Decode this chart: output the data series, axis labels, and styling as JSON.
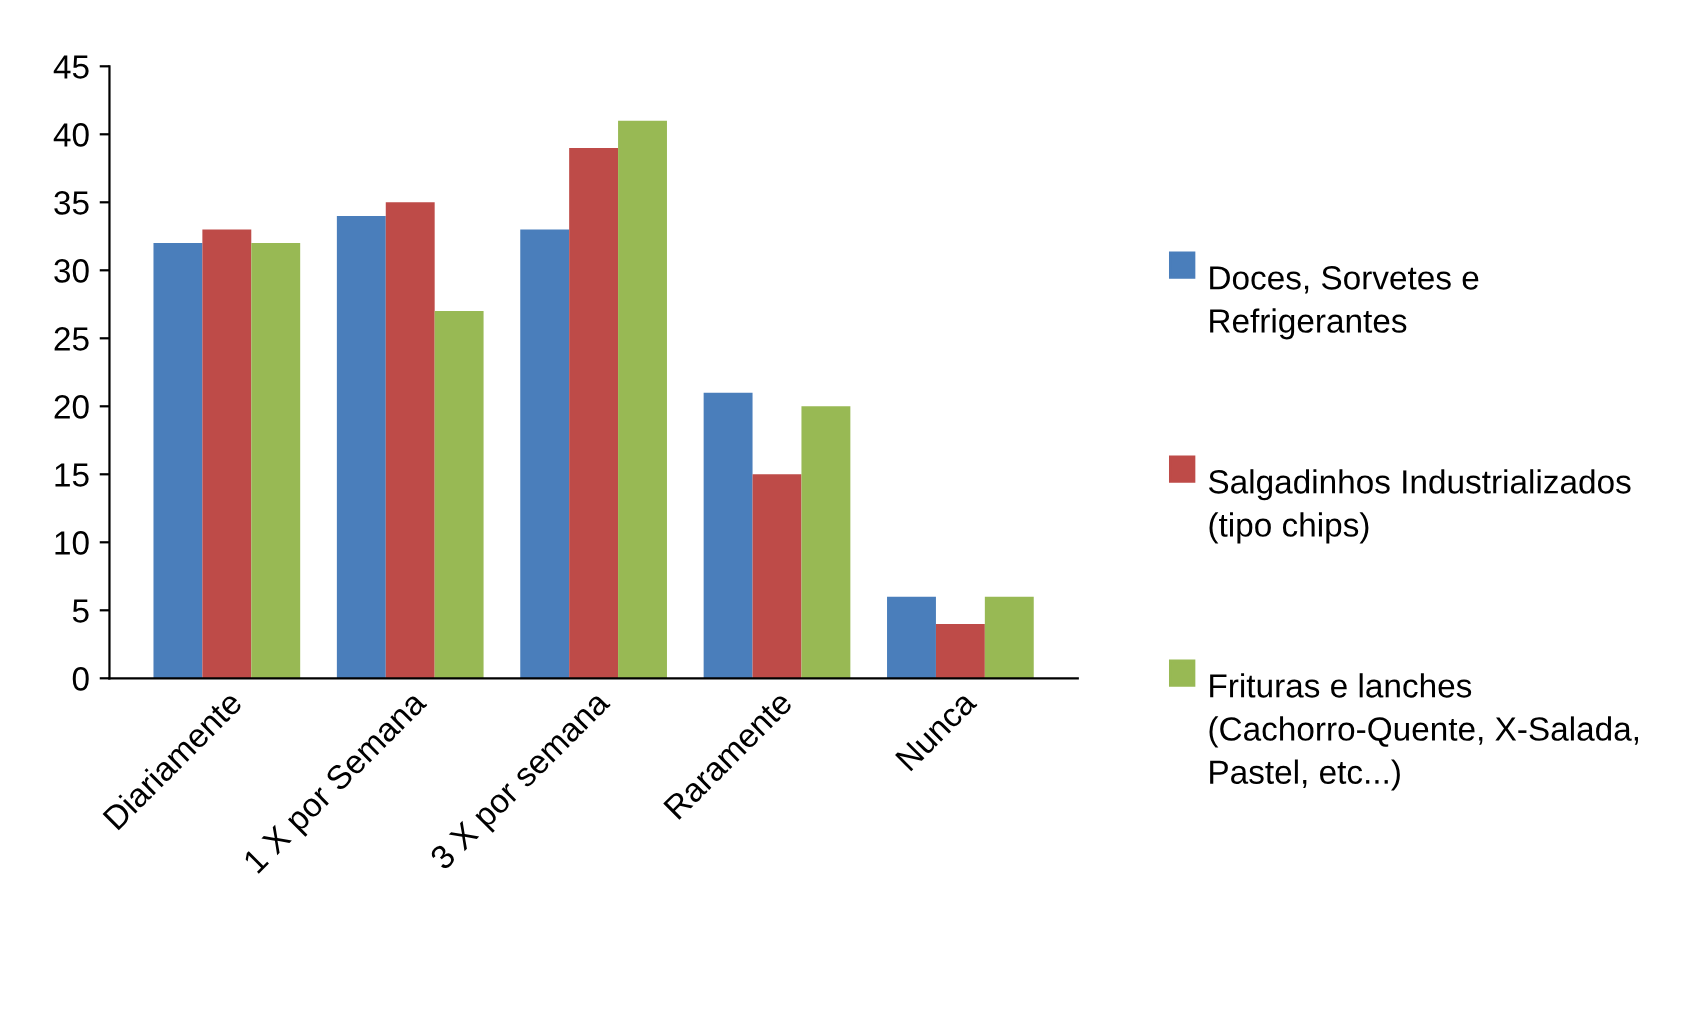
{
  "chart_data": {
    "type": "bar",
    "categories": [
      "Diariamente",
      "1 X por Semana",
      "3 X por semana",
      "Raramente",
      "Nunca"
    ],
    "series": [
      {
        "name": "Doces, Sorvetes e Refrigerantes",
        "color": "#4a7ebb",
        "values": [
          32,
          34,
          33,
          21,
          6
        ]
      },
      {
        "name": "Salgadinhos Industrializados (tipo chips)",
        "color": "#be4b48",
        "values": [
          33,
          35,
          39,
          15,
          4
        ]
      },
      {
        "name": "Frituras e lanches (Cachorro-Quente, X-Salada, Pastel, etc...)",
        "color": "#98b954",
        "values": [
          32,
          27,
          41,
          20,
          6
        ]
      }
    ],
    "ylim": [
      0,
      45
    ],
    "yticks": [
      0,
      5,
      10,
      15,
      20,
      25,
      30,
      35,
      40,
      45
    ],
    "grid": false,
    "legend": "right"
  }
}
